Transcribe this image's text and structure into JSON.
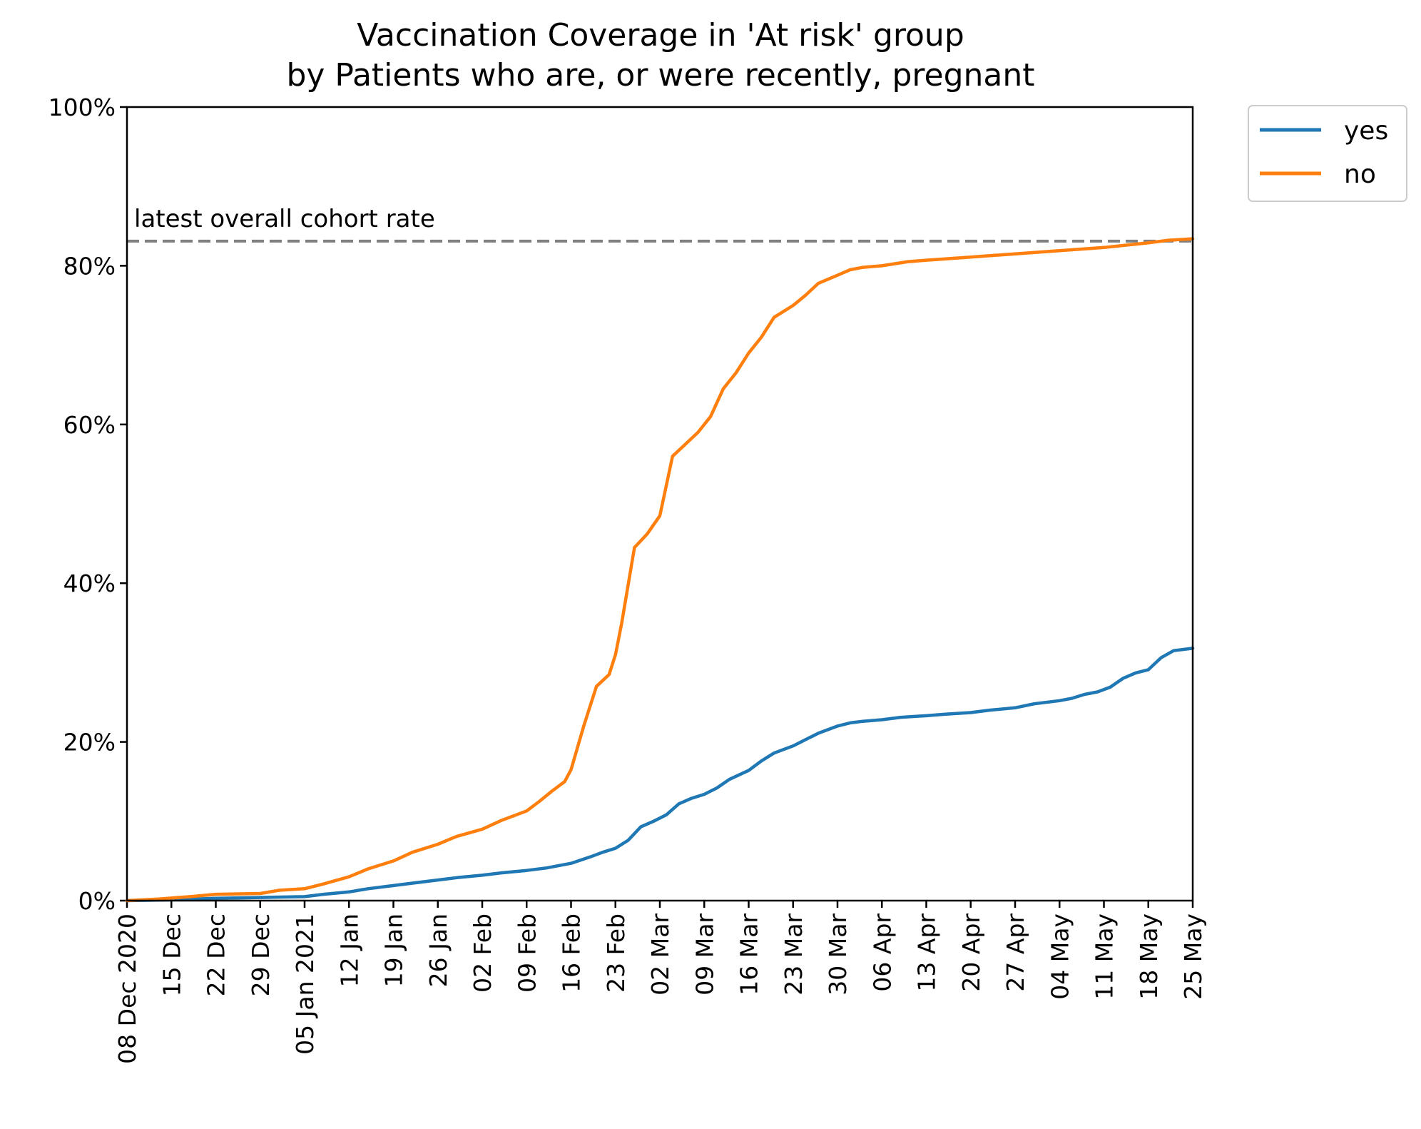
{
  "chart_data": {
    "type": "line",
    "title": [
      "Vaccination Coverage in 'At risk' group",
      "by Patients who are, or were recently, pregnant"
    ],
    "xlabel": "",
    "ylabel": "",
    "x_range": [
      "2020-12-08",
      "2021-05-25"
    ],
    "ylim": [
      0,
      100
    ],
    "y_ticks": [
      {
        "value": 0,
        "label": "0%"
      },
      {
        "value": 20,
        "label": "20%"
      },
      {
        "value": 40,
        "label": "40%"
      },
      {
        "value": 60,
        "label": "60%"
      },
      {
        "value": 80,
        "label": "80%"
      },
      {
        "value": 100,
        "label": "100%"
      }
    ],
    "x_ticks": [
      {
        "date": "2020-12-08",
        "label": "08 Dec 2020"
      },
      {
        "date": "2020-12-15",
        "label": "15 Dec"
      },
      {
        "date": "2020-12-22",
        "label": "22 Dec"
      },
      {
        "date": "2020-12-29",
        "label": "29 Dec"
      },
      {
        "date": "2021-01-05",
        "label": "05 Jan 2021"
      },
      {
        "date": "2021-01-12",
        "label": "12 Jan"
      },
      {
        "date": "2021-01-19",
        "label": "19 Jan"
      },
      {
        "date": "2021-01-26",
        "label": "26 Jan"
      },
      {
        "date": "2021-02-02",
        "label": "02 Feb"
      },
      {
        "date": "2021-02-09",
        "label": "09 Feb"
      },
      {
        "date": "2021-02-16",
        "label": "16 Feb"
      },
      {
        "date": "2021-02-23",
        "label": "23 Feb"
      },
      {
        "date": "2021-03-02",
        "label": "02 Mar"
      },
      {
        "date": "2021-03-09",
        "label": "09 Mar"
      },
      {
        "date": "2021-03-16",
        "label": "16 Mar"
      },
      {
        "date": "2021-03-23",
        "label": "23 Mar"
      },
      {
        "date": "2021-03-30",
        "label": "30 Mar"
      },
      {
        "date": "2021-04-06",
        "label": "06 Apr"
      },
      {
        "date": "2021-04-13",
        "label": "13 Apr"
      },
      {
        "date": "2021-04-20",
        "label": "20 Apr"
      },
      {
        "date": "2021-04-27",
        "label": "27 Apr"
      },
      {
        "date": "2021-05-04",
        "label": "04 May"
      },
      {
        "date": "2021-05-11",
        "label": "11 May"
      },
      {
        "date": "2021-05-18",
        "label": "18 May"
      },
      {
        "date": "2021-05-25",
        "label": "25 May"
      }
    ],
    "grid": false,
    "legend_position": "outside top-right",
    "series": [
      {
        "name": "yes",
        "color": "#1f77b4",
        "points": [
          [
            "2020-12-08",
            0.0
          ],
          [
            "2020-12-15",
            0.1
          ],
          [
            "2020-12-22",
            0.3
          ],
          [
            "2020-12-29",
            0.4
          ],
          [
            "2021-01-05",
            0.5
          ],
          [
            "2021-01-08",
            0.8
          ],
          [
            "2021-01-12",
            1.1
          ],
          [
            "2021-01-15",
            1.5
          ],
          [
            "2021-01-19",
            1.9
          ],
          [
            "2021-01-22",
            2.2
          ],
          [
            "2021-01-26",
            2.6
          ],
          [
            "2021-01-29",
            2.9
          ],
          [
            "2021-02-02",
            3.2
          ],
          [
            "2021-02-05",
            3.5
          ],
          [
            "2021-02-09",
            3.8
          ],
          [
            "2021-02-12",
            4.1
          ],
          [
            "2021-02-14",
            4.4
          ],
          [
            "2021-02-16",
            4.7
          ],
          [
            "2021-02-19",
            5.5
          ],
          [
            "2021-02-21",
            6.1
          ],
          [
            "2021-02-23",
            6.6
          ],
          [
            "2021-02-25",
            7.6
          ],
          [
            "2021-02-27",
            9.3
          ],
          [
            "2021-03-01",
            10.0
          ],
          [
            "2021-03-03",
            10.8
          ],
          [
            "2021-03-05",
            12.2
          ],
          [
            "2021-03-07",
            12.9
          ],
          [
            "2021-03-09",
            13.4
          ],
          [
            "2021-03-11",
            14.2
          ],
          [
            "2021-03-13",
            15.3
          ],
          [
            "2021-03-16",
            16.4
          ],
          [
            "2021-03-18",
            17.6
          ],
          [
            "2021-03-20",
            18.6
          ],
          [
            "2021-03-23",
            19.5
          ],
          [
            "2021-03-25",
            20.3
          ],
          [
            "2021-03-27",
            21.1
          ],
          [
            "2021-03-30",
            22.0
          ],
          [
            "2021-04-01",
            22.4
          ],
          [
            "2021-04-03",
            22.6
          ],
          [
            "2021-04-06",
            22.8
          ],
          [
            "2021-04-09",
            23.1
          ],
          [
            "2021-04-13",
            23.3
          ],
          [
            "2021-04-16",
            23.5
          ],
          [
            "2021-04-20",
            23.7
          ],
          [
            "2021-04-23",
            24.0
          ],
          [
            "2021-04-27",
            24.3
          ],
          [
            "2021-04-30",
            24.8
          ],
          [
            "2021-05-04",
            25.2
          ],
          [
            "2021-05-06",
            25.5
          ],
          [
            "2021-05-08",
            26.0
          ],
          [
            "2021-05-10",
            26.3
          ],
          [
            "2021-05-12",
            26.9
          ],
          [
            "2021-05-14",
            28.0
          ],
          [
            "2021-05-16",
            28.7
          ],
          [
            "2021-05-18",
            29.1
          ],
          [
            "2021-05-20",
            30.6
          ],
          [
            "2021-05-22",
            31.5
          ],
          [
            "2021-05-25",
            31.8
          ]
        ]
      },
      {
        "name": "no",
        "color": "#ff7f0e",
        "points": [
          [
            "2020-12-08",
            0.0
          ],
          [
            "2020-12-13",
            0.2
          ],
          [
            "2020-12-18",
            0.5
          ],
          [
            "2020-12-22",
            0.8
          ],
          [
            "2020-12-29",
            0.9
          ],
          [
            "2021-01-01",
            1.3
          ],
          [
            "2021-01-05",
            1.5
          ],
          [
            "2021-01-08",
            2.1
          ],
          [
            "2021-01-12",
            3.0
          ],
          [
            "2021-01-15",
            4.0
          ],
          [
            "2021-01-19",
            5.0
          ],
          [
            "2021-01-22",
            6.1
          ],
          [
            "2021-01-26",
            7.1
          ],
          [
            "2021-01-29",
            8.1
          ],
          [
            "2021-02-02",
            9.0
          ],
          [
            "2021-02-05",
            10.1
          ],
          [
            "2021-02-09",
            11.3
          ],
          [
            "2021-02-11",
            12.5
          ],
          [
            "2021-02-13",
            13.8
          ],
          [
            "2021-02-15",
            15.0
          ],
          [
            "2021-02-16",
            16.5
          ],
          [
            "2021-02-18",
            22.0
          ],
          [
            "2021-02-20",
            27.0
          ],
          [
            "2021-02-22",
            28.5
          ],
          [
            "2021-02-23",
            31.0
          ],
          [
            "2021-02-24",
            35.0
          ],
          [
            "2021-02-26",
            44.5
          ],
          [
            "2021-02-28",
            46.2
          ],
          [
            "2021-03-02",
            48.5
          ],
          [
            "2021-03-04",
            56.0
          ],
          [
            "2021-03-06",
            57.5
          ],
          [
            "2021-03-08",
            59.0
          ],
          [
            "2021-03-10",
            61.0
          ],
          [
            "2021-03-12",
            64.5
          ],
          [
            "2021-03-14",
            66.5
          ],
          [
            "2021-03-16",
            69.0
          ],
          [
            "2021-03-18",
            71.0
          ],
          [
            "2021-03-20",
            73.5
          ],
          [
            "2021-03-23",
            75.0
          ],
          [
            "2021-03-25",
            76.3
          ],
          [
            "2021-03-27",
            77.8
          ],
          [
            "2021-03-30",
            78.8
          ],
          [
            "2021-04-01",
            79.5
          ],
          [
            "2021-04-03",
            79.8
          ],
          [
            "2021-04-06",
            80.0
          ],
          [
            "2021-04-10",
            80.5
          ],
          [
            "2021-04-13",
            80.7
          ],
          [
            "2021-04-20",
            81.1
          ],
          [
            "2021-04-27",
            81.5
          ],
          [
            "2021-05-04",
            81.9
          ],
          [
            "2021-05-11",
            82.3
          ],
          [
            "2021-05-18",
            82.9
          ],
          [
            "2021-05-21",
            83.2
          ],
          [
            "2021-05-25",
            83.4
          ]
        ]
      }
    ],
    "reference_line": {
      "label": "latest overall cohort rate",
      "value": 83.1,
      "color": "#808080",
      "style": "dashed"
    }
  }
}
